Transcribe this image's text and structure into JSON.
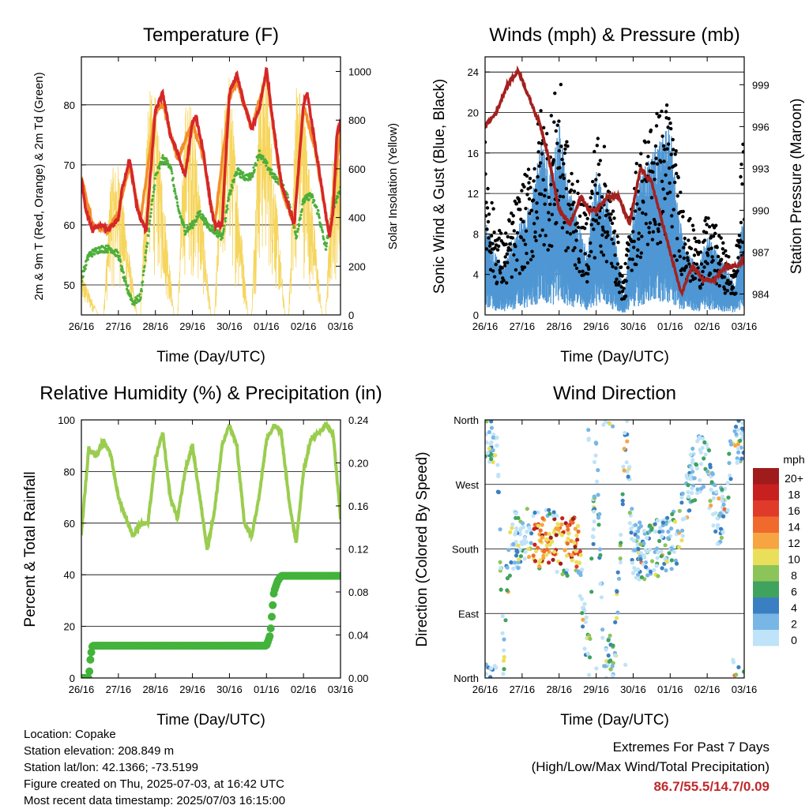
{
  "colors": {
    "temp2m": "#d62728",
    "temp9m": "#f28e2b",
    "dewpoint": "#4daf3a",
    "solar": "#f6d55c",
    "wind": "#4f97d4",
    "gust": "#000000",
    "pressure": "#a3211f",
    "rh": "#9acd4f",
    "precip": "#43b33b",
    "extremes": "#c0282b"
  },
  "time_ticks": [
    "26/16",
    "27/16",
    "28/16",
    "29/16",
    "30/16",
    "01/16",
    "02/16",
    "03/16"
  ],
  "panels": {
    "temperature": {
      "title": "Temperature (F)",
      "xlabel": "Time (Day/UTC)",
      "ylabel_left": "2m & 9m T (Red, Orange) & 2m Td (Green)",
      "ylabel_right": "Solar Insolation (Yellow)",
      "left_ticks": [
        "50",
        "60",
        "70",
        "80"
      ],
      "right_ticks": [
        "0",
        "200",
        "400",
        "600",
        "800",
        "1000"
      ]
    },
    "wind": {
      "title": "Winds (mph) & Pressure (mb)",
      "xlabel": "Time (Day/UTC)",
      "ylabel_left": "Sonic Wind & Gust (Blue, Black)",
      "ylabel_right": "Station Pressure (Maroon)",
      "left_ticks": [
        "0",
        "4",
        "8",
        "12",
        "16",
        "20",
        "24"
      ],
      "right_ticks": [
        "984",
        "987",
        "990",
        "993",
        "996",
        "999"
      ]
    },
    "humidity": {
      "title": "Relative Humidity (%) & Precipitation (in)",
      "xlabel": "Time (Day/UTC)",
      "ylabel_left": "Percent & Total Rainfall",
      "left_ticks": [
        "0",
        "20",
        "40",
        "60",
        "80",
        "100"
      ],
      "right_ticks": [
        "0.00",
        "0.04",
        "0.08",
        "0.12",
        "0.16",
        "0.20",
        "0.24"
      ]
    },
    "direction": {
      "title": "Wind Direction",
      "xlabel": "Time (Day/UTC)",
      "ylabel_left": "Direction (Colored By Speed)",
      "left_ticks": [
        "North",
        "East",
        "South",
        "West",
        "North"
      ],
      "legend_title": "mph",
      "legend_labels": [
        "20+",
        "18",
        "16",
        "14",
        "12",
        "10",
        "8",
        "6",
        "4",
        "2",
        "0"
      ],
      "legend_colors": [
        "#a01c1c",
        "#c8201e",
        "#e03b2a",
        "#f06a2e",
        "#f7a542",
        "#eadf5a",
        "#8cc45a",
        "#3fa35e",
        "#3a7fc1",
        "#78b6e6",
        "#bfe3f8"
      ]
    }
  },
  "info": {
    "location": "Location: Copake",
    "elevation": "Station elevation: 208.849 m",
    "latlon": "Station lat/lon: 42.1366; -73.5199",
    "created": "Figure created on Thu, 2025-07-03, at 16:42 UTC",
    "recent": "Most recent data timestamp: 2025/07/03 16:15:00"
  },
  "extremes": {
    "line1": "Extremes For Past 7 Days",
    "line2": "(High/Low/Max Wind/Total Precipitation)",
    "values": "86.7/55.5/14.7/0.09"
  },
  "chart_data": [
    {
      "type": "line",
      "title": "Temperature (F)",
      "x_unit": "days since 26/16",
      "ylim": [
        45,
        88
      ],
      "y2lim": [
        0,
        1060
      ],
      "series": [
        {
          "name": "2m T",
          "axis": "left",
          "x": [
            0,
            0.1,
            0.3,
            0.5,
            0.7,
            1.0,
            1.1,
            1.3,
            1.5,
            1.6,
            1.75,
            2.0,
            2.2,
            2.4,
            2.6,
            2.8,
            3.0,
            3.1,
            3.3,
            3.5,
            3.6,
            3.8,
            4.0,
            4.2,
            4.4,
            4.6,
            4.8,
            5.0,
            5.2,
            5.4,
            5.6,
            5.75,
            6.0,
            6.1,
            6.3,
            6.5,
            6.7,
            6.8,
            6.9,
            7.0
          ],
          "values": [
            68,
            63,
            59,
            60,
            59,
            61,
            66,
            71,
            63,
            61,
            59,
            79,
            82,
            75,
            72,
            68,
            77,
            78,
            72,
            63,
            60,
            60,
            82,
            85,
            80,
            76,
            79,
            86,
            76,
            67,
            63,
            60,
            80,
            82,
            74,
            66,
            58,
            62,
            75,
            77
          ]
        },
        {
          "name": "9m T",
          "axis": "left",
          "x": [
            0,
            0.3,
            0.7,
            1.0,
            1.3,
            1.6,
            2.0,
            2.2,
            2.6,
            3.0,
            3.3,
            3.6,
            4.0,
            4.2,
            4.6,
            5.0,
            5.4,
            5.75,
            6.0,
            6.3,
            6.7,
            7.0
          ],
          "values": [
            68,
            60,
            59,
            62,
            70,
            61,
            79,
            80,
            71,
            77,
            71,
            60,
            81,
            84,
            76,
            85,
            66,
            60,
            80,
            73,
            58,
            76
          ]
        },
        {
          "name": "2m Td",
          "axis": "left",
          "x": [
            0,
            0.2,
            0.5,
            0.8,
            1.0,
            1.2,
            1.4,
            1.6,
            1.8,
            2.0,
            2.2,
            2.4,
            2.6,
            2.8,
            3.0,
            3.2,
            3.4,
            3.6,
            3.8,
            4.0,
            4.2,
            4.4,
            4.6,
            4.8,
            5.0,
            5.2,
            5.4,
            5.6,
            5.8,
            6.0,
            6.2,
            6.4,
            6.6,
            6.8,
            7.0
          ],
          "values": [
            51,
            55,
            56,
            56,
            55,
            50,
            47,
            48,
            58,
            68,
            71,
            70,
            63,
            59,
            60,
            62,
            60,
            59,
            58,
            65,
            69,
            68,
            68,
            72,
            70,
            68,
            67,
            64,
            58,
            64,
            65,
            62,
            56,
            63,
            66
          ]
        },
        {
          "name": "Solar Insolation",
          "axis": "right",
          "x": [
            0,
            0.45,
            0.6,
            0.8,
            1.0,
            1.5,
            1.6,
            1.8,
            2.0,
            2.5,
            2.6,
            2.8,
            3.0,
            3.5,
            3.6,
            3.8,
            4.0,
            4.5,
            4.6,
            4.8,
            5.0,
            5.5,
            5.6,
            5.8,
            6.0,
            6.5,
            6.6,
            6.8,
            7.0
          ],
          "values": [
            180,
            0,
            0,
            600,
            620,
            0,
            0,
            930,
            900,
            0,
            0,
            870,
            880,
            0,
            0,
            800,
            1000,
            0,
            0,
            960,
            1020,
            0,
            0,
            980,
            900,
            0,
            0,
            700,
            800
          ]
        }
      ]
    },
    {
      "type": "line",
      "title": "Winds (mph) & Pressure (mb)",
      "x_unit": "days since 26/16",
      "ylim": [
        0,
        25.5
      ],
      "y2lim": [
        982.5,
        1001
      ],
      "series": [
        {
          "name": "Sonic Wind",
          "axis": "left",
          "x": [
            0,
            0.25,
            0.5,
            0.75,
            1.0,
            1.25,
            1.5,
            1.75,
            2.0,
            2.25,
            2.5,
            2.75,
            3.0,
            3.25,
            3.5,
            3.75,
            4.0,
            4.25,
            4.5,
            4.75,
            5.0,
            5.25,
            5.5,
            5.75,
            6.0,
            6.25,
            6.5,
            6.75,
            7.0
          ],
          "values": [
            6,
            4,
            3,
            5,
            6,
            7,
            11,
            9,
            12,
            8,
            6,
            4,
            9,
            8,
            5,
            1,
            7,
            9,
            10,
            11,
            12,
            6,
            4,
            3,
            5,
            4,
            3,
            2,
            7
          ]
        },
        {
          "name": "Gust",
          "axis": "left",
          "x": [
            0,
            0.25,
            0.5,
            0.75,
            1.0,
            1.25,
            1.5,
            1.75,
            2.0,
            2.25,
            2.5,
            2.75,
            3.0,
            3.25,
            3.5,
            3.75,
            4.0,
            4.25,
            4.5,
            4.75,
            5.0,
            5.25,
            5.5,
            5.75,
            6.0,
            6.25,
            6.5,
            6.75,
            7.0
          ],
          "values": [
            16,
            9,
            7,
            10,
            12,
            14,
            19,
            18,
            22,
            15,
            12,
            9,
            17,
            15,
            9,
            3,
            13,
            16,
            18,
            19,
            20,
            12,
            9,
            7,
            9,
            8,
            6,
            4,
            18
          ]
        },
        {
          "name": "Station Pressure",
          "axis": "right",
          "x": [
            0,
            0.3,
            0.6,
            0.9,
            1.2,
            1.5,
            1.7,
            2.0,
            2.3,
            2.6,
            2.8,
            3.0,
            3.3,
            3.6,
            3.9,
            4.2,
            4.5,
            4.8,
            5.1,
            5.3,
            5.6,
            5.9,
            6.2,
            6.5,
            6.8,
            7.0
          ],
          "values": [
            996,
            997,
            999,
            1000,
            998,
            996,
            994,
            990,
            989,
            991,
            990,
            990,
            991,
            991,
            989,
            993,
            992,
            989,
            986,
            984,
            986,
            985,
            985,
            986,
            986,
            986.5
          ]
        }
      ]
    },
    {
      "type": "line",
      "title": "Relative Humidity (%) & Precipitation (in)",
      "x_unit": "days since 26/16",
      "ylim": [
        0,
        100
      ],
      "y2lim": [
        0,
        0.24
      ],
      "series": [
        {
          "name": "Relative Humidity",
          "axis": "left",
          "x": [
            0,
            0.2,
            0.4,
            0.6,
            0.8,
            1.0,
            1.2,
            1.4,
            1.6,
            1.8,
            2.0,
            2.2,
            2.4,
            2.6,
            2.8,
            3.0,
            3.2,
            3.4,
            3.6,
            3.8,
            4.0,
            4.2,
            4.4,
            4.6,
            4.8,
            5.0,
            5.2,
            5.4,
            5.6,
            5.8,
            6.0,
            6.2,
            6.4,
            6.6,
            6.8,
            7.0
          ],
          "values": [
            56,
            89,
            86,
            92,
            86,
            70,
            62,
            55,
            60,
            60,
            85,
            95,
            70,
            62,
            80,
            90,
            70,
            50,
            65,
            90,
            98,
            90,
            60,
            55,
            70,
            92,
            98,
            95,
            70,
            52,
            80,
            93,
            95,
            98,
            95,
            62
          ]
        },
        {
          "name": "Total Rainfall",
          "axis": "right",
          "x": [
            0,
            0.2,
            0.25,
            0.3,
            5.0,
            5.1,
            5.15,
            5.2,
            5.3,
            5.4,
            7.0
          ],
          "values": [
            0,
            0.0,
            0.02,
            0.03,
            0.03,
            0.04,
            0.06,
            0.08,
            0.09,
            0.095,
            0.095
          ]
        }
      ]
    },
    {
      "type": "scatter",
      "title": "Wind Direction",
      "x_unit": "days since 26/16",
      "ylim": [
        0,
        360
      ],
      "series": [
        {
          "name": "Wind Direction",
          "x": [
            0.3,
            0.5,
            0.6,
            0.8,
            1.0,
            1.2,
            1.5,
            1.7,
            2.0,
            2.2,
            2.5,
            2.8,
            3.0,
            3.2,
            3.5,
            3.8,
            4.0,
            4.3,
            4.5,
            4.7,
            5.0,
            5.2,
            5.5,
            5.8,
            6.0,
            6.3,
            6.5,
            6.7,
            6.9
          ],
          "values": [
            340,
            20,
            150,
            200,
            180,
            210,
            190,
            200,
            185,
            180,
            190,
            10,
            345,
            20,
            30,
            350,
            180,
            175,
            185,
            180,
            190,
            200,
            270,
            300,
            290,
            220,
            240,
            350,
            330
          ]
        }
      ]
    }
  ]
}
